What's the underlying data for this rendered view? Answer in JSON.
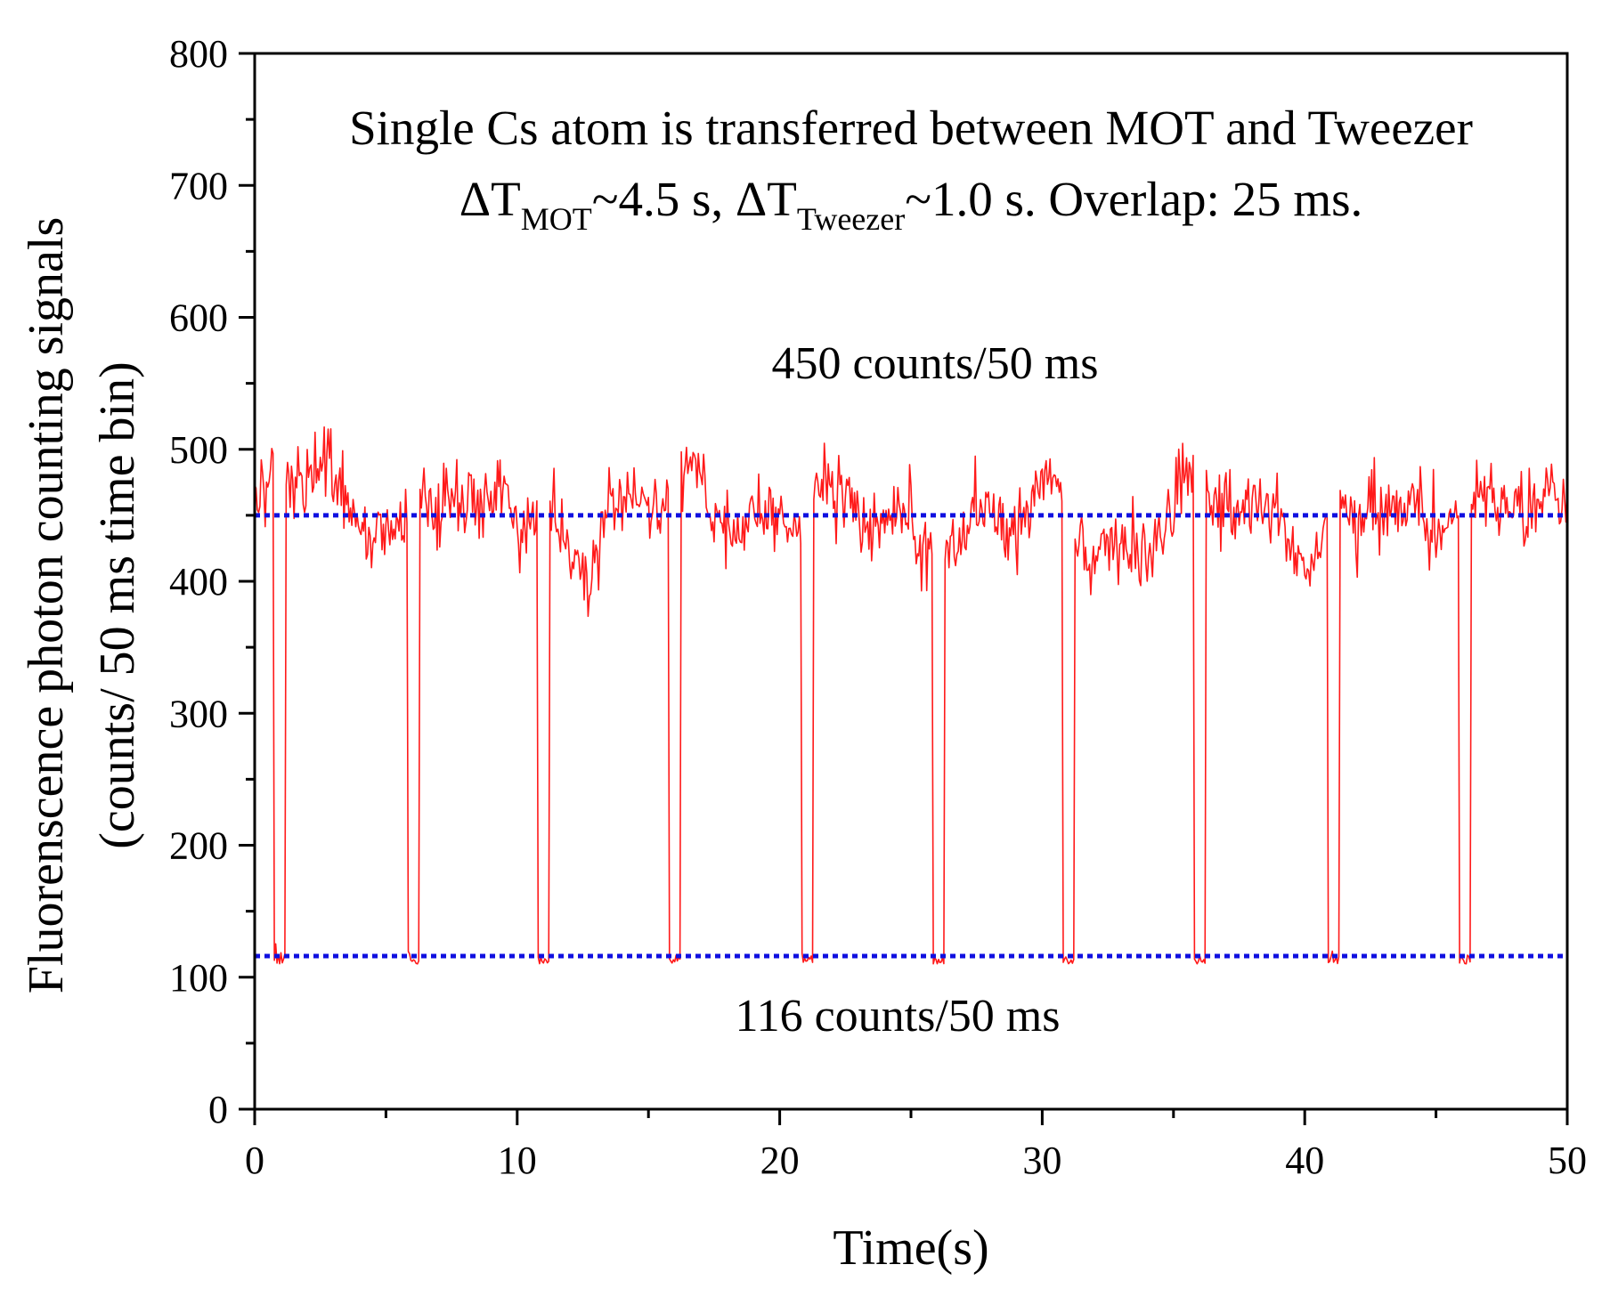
{
  "chart_data": {
    "type": "line",
    "title": "",
    "xlabel": "Time(s)",
    "ylabel_line1": "Fluorenscence photon counting signals",
    "ylabel_line2": "(counts/ 50 ms time bin)",
    "xlim": [
      0,
      50
    ],
    "ylim": [
      0,
      800
    ],
    "x_major_ticks": [
      0,
      10,
      20,
      30,
      40,
      50
    ],
    "x_minor_ticks": [
      5,
      15,
      25,
      35,
      45
    ],
    "y_major_ticks": [
      0,
      100,
      200,
      300,
      400,
      500,
      600,
      700,
      800
    ],
    "y_minor_ticks": [
      50,
      150,
      250,
      350,
      450,
      550,
      650,
      750
    ],
    "grid": false,
    "annotations": {
      "line1": "Single Cs atom is transferred between MOT and Tweezer",
      "line2_parts": [
        "ΔT",
        "MOT",
        "~4.5 s, ΔT",
        "Tweezer",
        "~1.0 s. Overlap: 25 ms."
      ],
      "high_label": "450 counts/50 ms",
      "low_label": "116 counts/50 ms"
    },
    "reference_lines": [
      {
        "name": "tweezer-level",
        "y": 450,
        "color": "#1010e0",
        "style": "dotted"
      },
      {
        "name": "mot-level",
        "y": 116,
        "color": "#1010e0",
        "style": "dotted"
      }
    ],
    "series": [
      {
        "name": "Fluorescence signal",
        "color": "#ff1a1a",
        "sample_interval_s": 0.05,
        "high_level_counts": 450,
        "low_level_counts": 116,
        "noise_amplitude_counts": 45,
        "peak_max_counts": 555,
        "dip_start_times_s": [
          0.75,
          5.8,
          10.8,
          15.8,
          20.85,
          25.85,
          30.8,
          35.8,
          40.85,
          45.85
        ],
        "dip_duration_s": 0.45,
        "seed": 7
      }
    ]
  }
}
